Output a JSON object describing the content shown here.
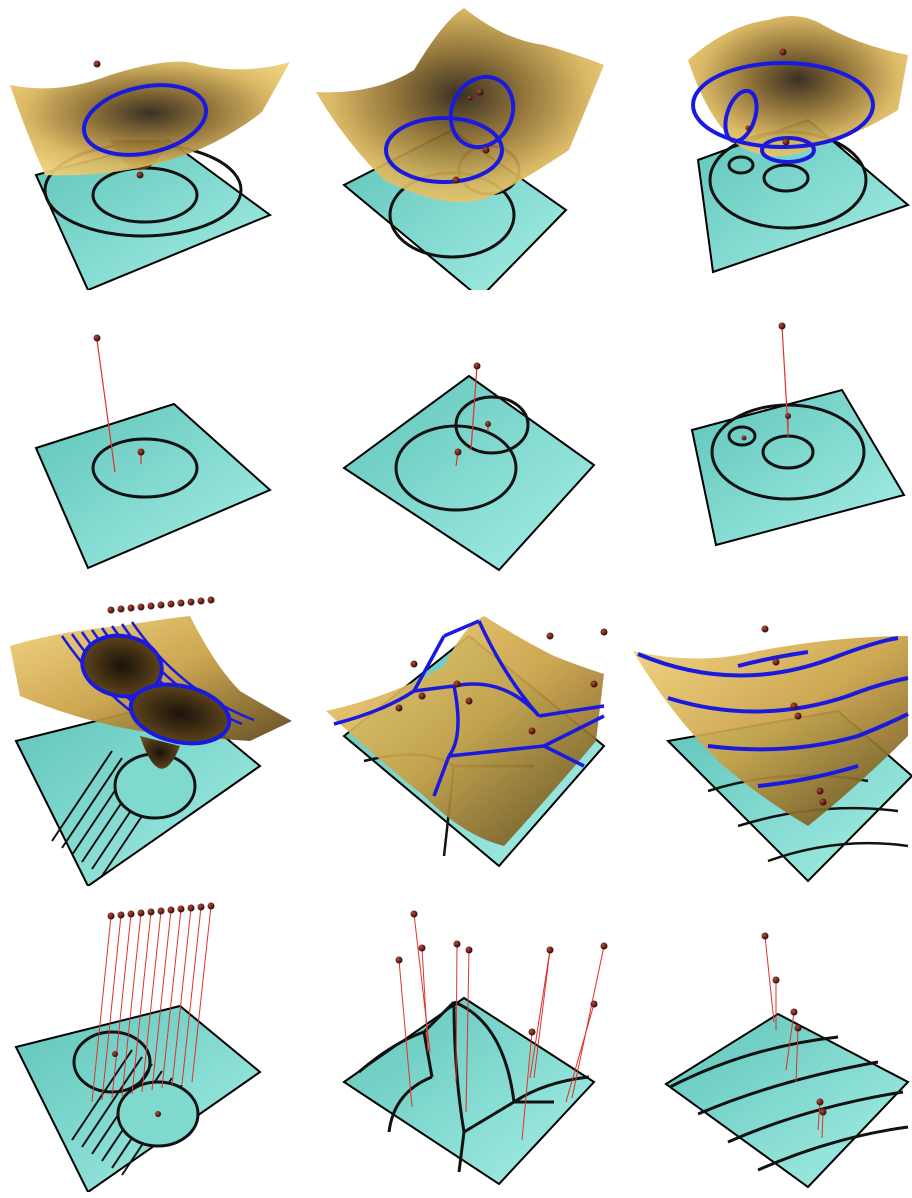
{
  "figure": {
    "columns": 3,
    "rows": 4,
    "colors": {
      "plane_fill": "#7fd9cf",
      "plane_edge": "#000000",
      "surface_light": "#f2d27a",
      "surface_mid": "#c49a3a",
      "surface_dark": "#2a1f10",
      "lifted_curve": "#1a1adf",
      "projected_curve": "#111111",
      "site_point": "#3a0c06",
      "lift_line": "#e0302a",
      "background": "#ffffff"
    },
    "panels": [
      {
        "row": 1,
        "col": 1,
        "content": "surface-with-one-circle",
        "shows_surface": true,
        "site_count": 2
      },
      {
        "row": 1,
        "col": 2,
        "content": "surface-with-two-intersecting-circles",
        "shows_surface": true,
        "site_count": 4
      },
      {
        "row": 1,
        "col": 3,
        "content": "surface-with-nested-circles",
        "shows_surface": true,
        "site_count": 3
      },
      {
        "row": 2,
        "col": 1,
        "content": "plane-with-one-circle-and-lift-lines",
        "shows_surface": false,
        "site_count": 2
      },
      {
        "row": 2,
        "col": 2,
        "content": "plane-with-two-circles-and-lift-lines",
        "shows_surface": false,
        "site_count": 3
      },
      {
        "row": 2,
        "col": 3,
        "content": "plane-with-nested-circles-and-lift-lines",
        "shows_surface": false,
        "site_count": 3
      },
      {
        "row": 3,
        "col": 1,
        "content": "surface-with-row-of-sites-and-hatched-band",
        "shows_surface": true,
        "site_count": 11
      },
      {
        "row": 3,
        "col": 2,
        "content": "surface-with-voronoi-network",
        "shows_surface": true,
        "site_count": 9
      },
      {
        "row": 3,
        "col": 3,
        "content": "surface-with-parallel-arcs",
        "shows_surface": true,
        "site_count": 6
      },
      {
        "row": 4,
        "col": 1,
        "content": "plane-with-row-of-sites-and-lift-lines",
        "shows_surface": false,
        "site_count": 11
      },
      {
        "row": 4,
        "col": 2,
        "content": "plane-with-voronoi-network-and-lift-lines",
        "shows_surface": false,
        "site_count": 9
      },
      {
        "row": 4,
        "col": 3,
        "content": "plane-with-parallel-arcs-and-lift-lines",
        "shows_surface": false,
        "site_count": 6
      }
    ]
  }
}
